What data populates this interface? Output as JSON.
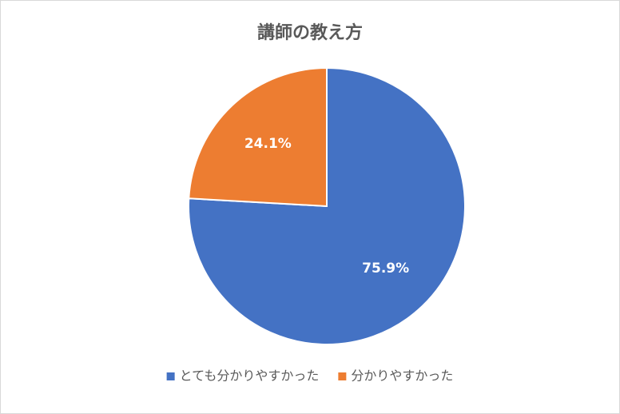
{
  "chart_data": {
    "type": "pie",
    "title": "講師の教え方",
    "categories": [
      "とても分かりやすかった",
      "分かりやすかった"
    ],
    "values": [
      75.9,
      24.1
    ],
    "value_labels": [
      "75.9%",
      "24.1%"
    ],
    "colors": [
      "#4472c4",
      "#ed7d31"
    ],
    "legend": "bottom"
  }
}
